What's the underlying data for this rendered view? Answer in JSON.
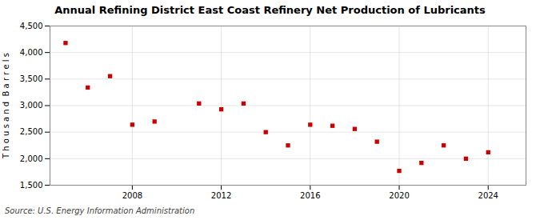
{
  "chart_data": {
    "type": "scatter",
    "title": "Annual Refining District East Coast Refinery Net Production of Lubricants",
    "ylabel": "T h o u s a n d  B a r r e l s",
    "source": "Source: U.S. Energy Information Administration",
    "x": [
      2005,
      2006,
      2007,
      2008,
      2009,
      2011,
      2012,
      2013,
      2014,
      2015,
      2016,
      2017,
      2018,
      2019,
      2020,
      2021,
      2022,
      2023,
      2024
    ],
    "values": [
      4180,
      3340,
      3555,
      2640,
      2700,
      3040,
      2930,
      3040,
      2500,
      2250,
      2640,
      2620,
      2560,
      2320,
      1770,
      1920,
      2250,
      2000,
      2120
    ],
    "color": "#cc0000",
    "marker": "square",
    "xlim": [
      2004.3,
      2025.7
    ],
    "xticks": [
      2008,
      2012,
      2016,
      2020,
      2024
    ],
    "ylim": [
      1500,
      4500
    ],
    "yticks": [
      {
        "value": 1500,
        "label": "1,500"
      },
      {
        "value": 2000,
        "label": "2,000"
      },
      {
        "value": 2500,
        "label": "2,500"
      },
      {
        "value": 3000,
        "label": "3,000"
      },
      {
        "value": 3500,
        "label": "3,500"
      },
      {
        "value": 4000,
        "label": "4,000"
      },
      {
        "value": 4500,
        "label": "4,500"
      }
    ],
    "grid": true
  }
}
